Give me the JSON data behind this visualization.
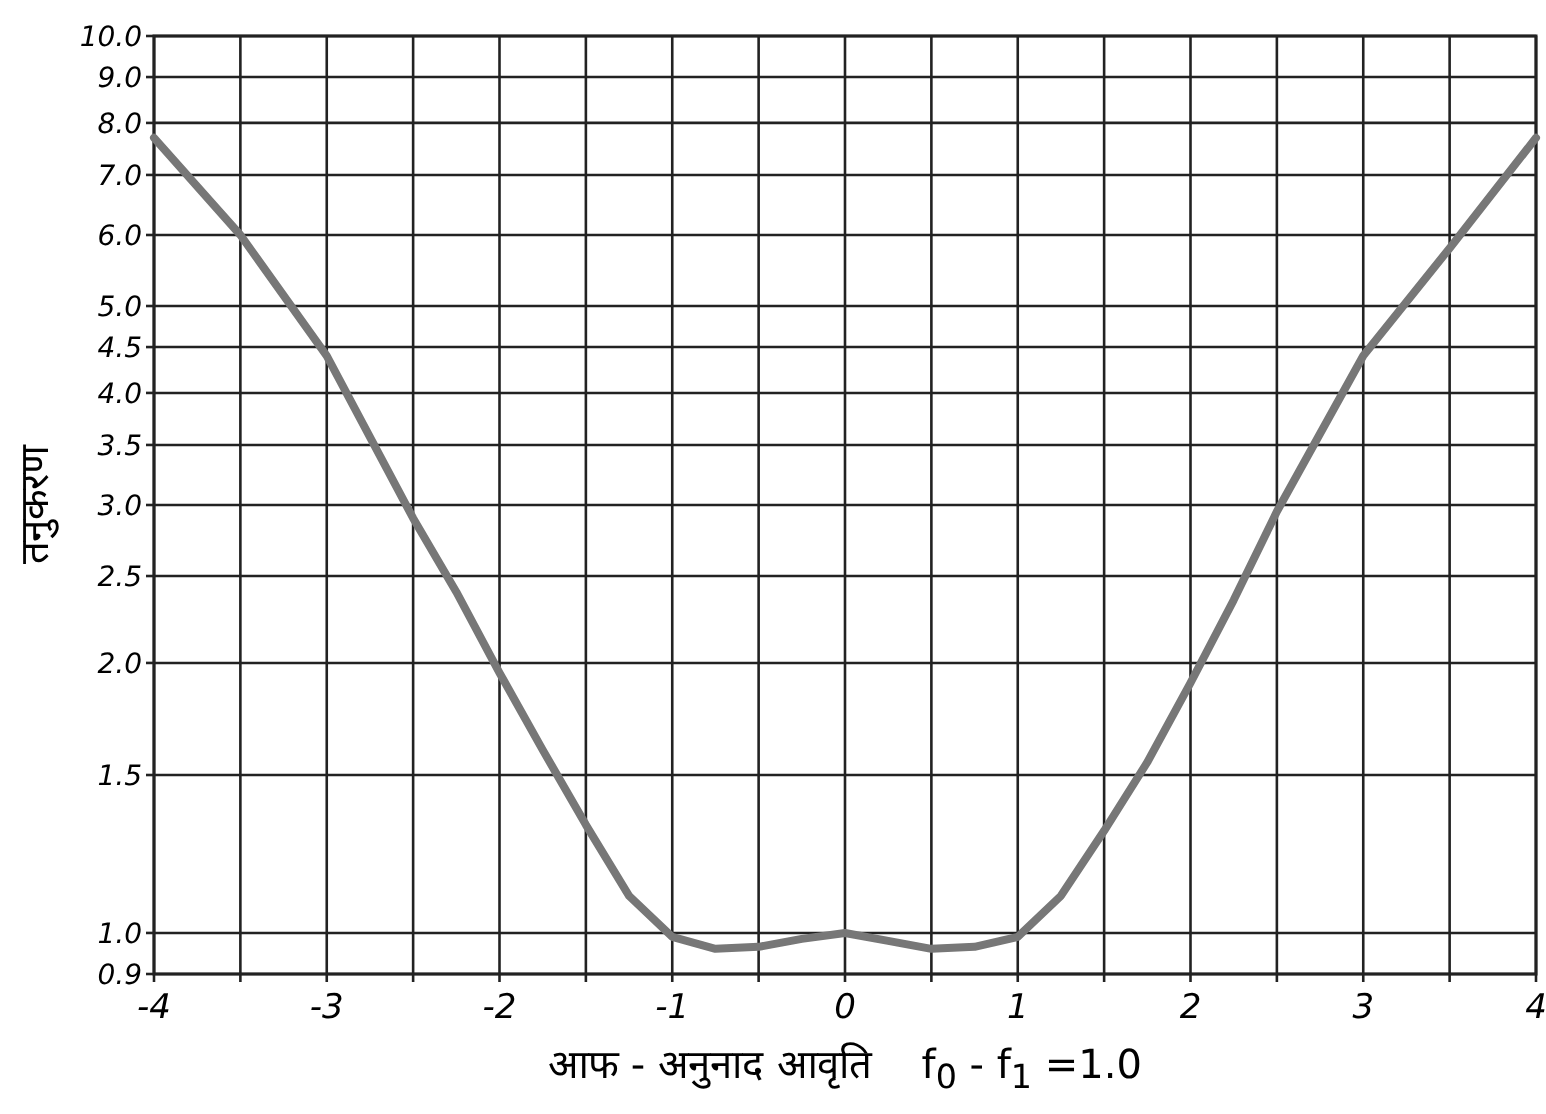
{
  "chart_data": {
    "type": "line",
    "xlabel": "आफ - अनुनाद आवृति    f$_{0}$ - f$_{1}$ =1.0",
    "ylabel": "तनुकरण",
    "log": "y",
    "grid": true,
    "marker": "none",
    "line_style": "solid",
    "xlim": [
      -4,
      4
    ],
    "xticks": [
      -4,
      {
        "value": -3.5,
        "label": null
      },
      -3,
      {
        "value": -2.5,
        "label": null
      },
      -2,
      {
        "value": -1.5,
        "label": null
      },
      -1,
      {
        "value": -0.5,
        "label": null
      },
      0,
      {
        "value": 0.5,
        "label": null
      },
      1,
      {
        "value": 1.5,
        "label": null
      },
      2,
      {
        "value": 2.5,
        "label": null
      },
      3,
      {
        "value": 3.5,
        "label": null
      },
      4
    ],
    "ylim": [
      0.9,
      10
    ],
    "yticks": [
      {
        "value": 0.9,
        "label": "0.9"
      },
      {
        "value": 1,
        "label": "1.0"
      },
      {
        "value": 1.5,
        "label": "1.5"
      },
      {
        "value": 2,
        "label": "2.0"
      },
      {
        "value": 2.5,
        "label": "2.5"
      },
      {
        "value": 3,
        "label": "3.0"
      },
      {
        "value": 3.5,
        "label": "3.5"
      },
      {
        "value": 4,
        "label": "4.0"
      },
      {
        "value": 4.5,
        "label": "4.5"
      },
      {
        "value": 5,
        "label": "5.0"
      },
      {
        "value": 6,
        "label": "6.0"
      },
      {
        "value": 7,
        "label": "7.0"
      },
      {
        "value": 8,
        "label": "8.0"
      },
      {
        "value": 9,
        "label": "9.0"
      },
      {
        "value": 10,
        "label": "10.0"
      }
    ],
    "series": [
      {
        "color": "#777777",
        "x": [
          -4,
          -3.5,
          -3,
          -2.5,
          -2.25,
          -2,
          -1.75,
          -1.5,
          -1.25,
          -1,
          -0.75,
          -0.5,
          -0.25,
          0,
          0.25,
          0.5,
          0.75,
          1,
          1.25,
          1.5,
          1.75,
          2,
          2.25,
          2.5,
          3,
          3.5,
          4
        ],
        "values": [
          7.7,
          6.0,
          4.4,
          2.9,
          2.4,
          1.95,
          1.6,
          1.32,
          1.1,
          0.99,
          0.96,
          0.965,
          0.985,
          1.0,
          0.98,
          0.96,
          0.965,
          0.99,
          1.1,
          1.3,
          1.55,
          1.9,
          2.35,
          2.95,
          4.4,
          5.8,
          7.7
        ]
      }
    ]
  }
}
